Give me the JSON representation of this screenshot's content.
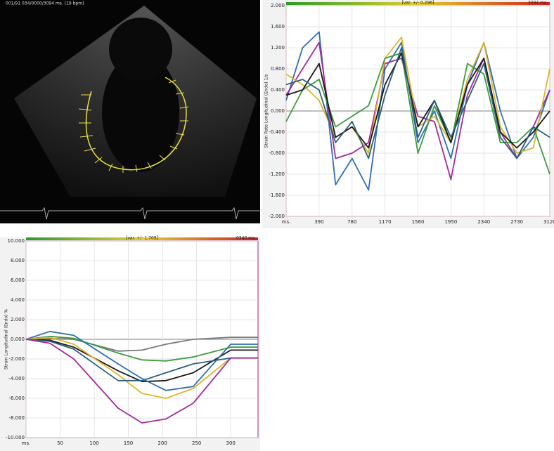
{
  "echo": {
    "header": "001/91  034/0000/3094 ms.  (19 bpm)"
  },
  "chart_data": [
    {
      "type": "line",
      "annotations": [
        "[var. +/- 0.296]",
        "3094 ms."
      ],
      "y_label": "Strain Rate Longitudinal (Endo) 1/s",
      "x": [
        0,
        195,
        390,
        585,
        780,
        975,
        1170,
        1365,
        1560,
        1755,
        1950,
        2145,
        2340,
        2535,
        2730,
        2925,
        3120
      ],
      "series": [
        {
          "color": "#2f6fb3",
          "values": [
            0.2,
            1.2,
            1.5,
            -1.4,
            -0.9,
            -1.5,
            0.8,
            1.3,
            -0.6,
            0.0,
            -0.9,
            0.5,
            1.3,
            0.0,
            -0.9,
            -0.5,
            0.4
          ]
        },
        {
          "color": "#a32a9c",
          "values": [
            0.3,
            0.8,
            1.3,
            -0.9,
            -0.8,
            -0.6,
            0.9,
            1.0,
            -0.1,
            -0.2,
            -1.3,
            0.3,
            1.0,
            -0.4,
            -0.9,
            -0.3,
            0.4
          ]
        },
        {
          "color": "#e0b52a",
          "values": [
            0.7,
            0.5,
            0.2,
            -0.5,
            -0.3,
            -0.8,
            1.0,
            1.4,
            -0.3,
            -0.1,
            -0.6,
            0.6,
            1.3,
            -0.3,
            -0.8,
            -0.7,
            0.8
          ]
        },
        {
          "color": "#3d9a3d",
          "values": [
            -0.2,
            0.4,
            0.6,
            -0.3,
            -0.1,
            0.1,
            1.0,
            1.1,
            -0.8,
            0.1,
            -0.6,
            0.9,
            0.7,
            -0.6,
            -0.6,
            -0.3,
            -1.2
          ]
        },
        {
          "color": "#1a1a1a",
          "values": [
            0.3,
            0.4,
            0.9,
            -0.5,
            -0.3,
            -0.7,
            0.5,
            1.1,
            -0.3,
            0.2,
            -0.6,
            0.5,
            1.0,
            -0.4,
            -0.7,
            -0.4,
            0.0
          ]
        },
        {
          "color": "#2b5f7e",
          "values": [
            0.5,
            0.6,
            0.4,
            -0.6,
            -0.2,
            -0.9,
            0.3,
            1.2,
            -0.5,
            0.2,
            -0.5,
            0.2,
            0.9,
            -0.5,
            -0.9,
            -0.3,
            -0.5
          ]
        }
      ],
      "xlim": [
        0,
        3120
      ],
      "ylim": [
        -2,
        2
      ],
      "xticks": [
        {
          "value": 0,
          "label": "ms."
        },
        390,
        780,
        1170,
        1560,
        1950,
        2340,
        2730,
        3120
      ],
      "yticks": [
        {
          "value": 2,
          "label": "2.000"
        },
        {
          "value": 1.6,
          "label": "1.600"
        },
        {
          "value": 1.2,
          "label": "1.200"
        },
        {
          "value": 0.8,
          "label": "0.800"
        },
        {
          "value": 0.4,
          "label": "0.400"
        },
        {
          "value": 0,
          "label": "0.000"
        },
        {
          "value": -0.4,
          "label": "-0.400"
        },
        {
          "value": -0.8,
          "label": "-0.800"
        },
        {
          "value": -1.2,
          "label": "-1.200"
        },
        {
          "value": -1.6,
          "label": "-1.600"
        },
        {
          "value": -2,
          "label": "-2.000"
        }
      ],
      "grid": true
    },
    {
      "type": "line",
      "annotations": [
        "[var. +/- 1.709]",
        "0340 ms."
      ],
      "y_label": "Strain Longitudinal (Endo) %",
      "x": [
        0,
        35,
        70,
        135,
        170,
        205,
        245,
        300,
        340
      ],
      "series": [
        {
          "color": "#7a7a7a",
          "values": [
            0,
            0.1,
            0,
            -1.2,
            -1.1,
            -0.5,
            0.0,
            0.2,
            0.2
          ]
        },
        {
          "color": "#3d9a3d",
          "values": [
            0,
            0.3,
            0.1,
            -1.4,
            -2.1,
            -2.2,
            -1.8,
            -0.8,
            -0.8
          ]
        },
        {
          "color": "#1a1a1a",
          "values": [
            0,
            -0.1,
            -0.8,
            -3.2,
            -4.3,
            -4.2,
            -3.4,
            -1.1,
            -1.1
          ]
        },
        {
          "color": "#2f6fb3",
          "values": [
            0,
            0.8,
            0.4,
            -2.5,
            -4.0,
            -5.2,
            -4.8,
            -0.5,
            -0.5
          ]
        },
        {
          "color": "#e0b52a",
          "values": [
            0,
            0.2,
            -0.5,
            -3.6,
            -5.5,
            -6.0,
            -5.0,
            -1.9,
            -1.9
          ]
        },
        {
          "color": "#2b5f7e",
          "values": [
            0,
            -0.2,
            -1.0,
            -4.2,
            -4.2,
            -3.4,
            -2.5,
            -1.9,
            -1.9
          ]
        },
        {
          "color": "#a32a9c",
          "values": [
            0,
            -0.4,
            -2.0,
            -7.0,
            -8.5,
            -8.1,
            -6.5,
            -1.9,
            -1.9
          ]
        }
      ],
      "xlim": [
        0,
        340
      ],
      "ylim": [
        -10,
        10
      ],
      "xticks": [
        {
          "value": 0,
          "label": "ms."
        },
        50,
        100,
        150,
        200,
        250,
        300
      ],
      "yticks": [
        {
          "value": 10,
          "label": "10.000"
        },
        {
          "value": 8,
          "label": "8.000"
        },
        {
          "value": 6,
          "label": "6.000"
        },
        {
          "value": 4,
          "label": "4.000"
        },
        {
          "value": 2,
          "label": "2.000"
        },
        {
          "value": 0,
          "label": "0.000"
        },
        {
          "value": -2,
          "label": "-2.000"
        },
        {
          "value": -4,
          "label": "-4.000"
        },
        {
          "value": -6,
          "label": "-6.000"
        },
        {
          "value": -8,
          "label": "-8.000"
        },
        {
          "value": -10,
          "label": "-10.000"
        }
      ],
      "grid": true
    }
  ]
}
